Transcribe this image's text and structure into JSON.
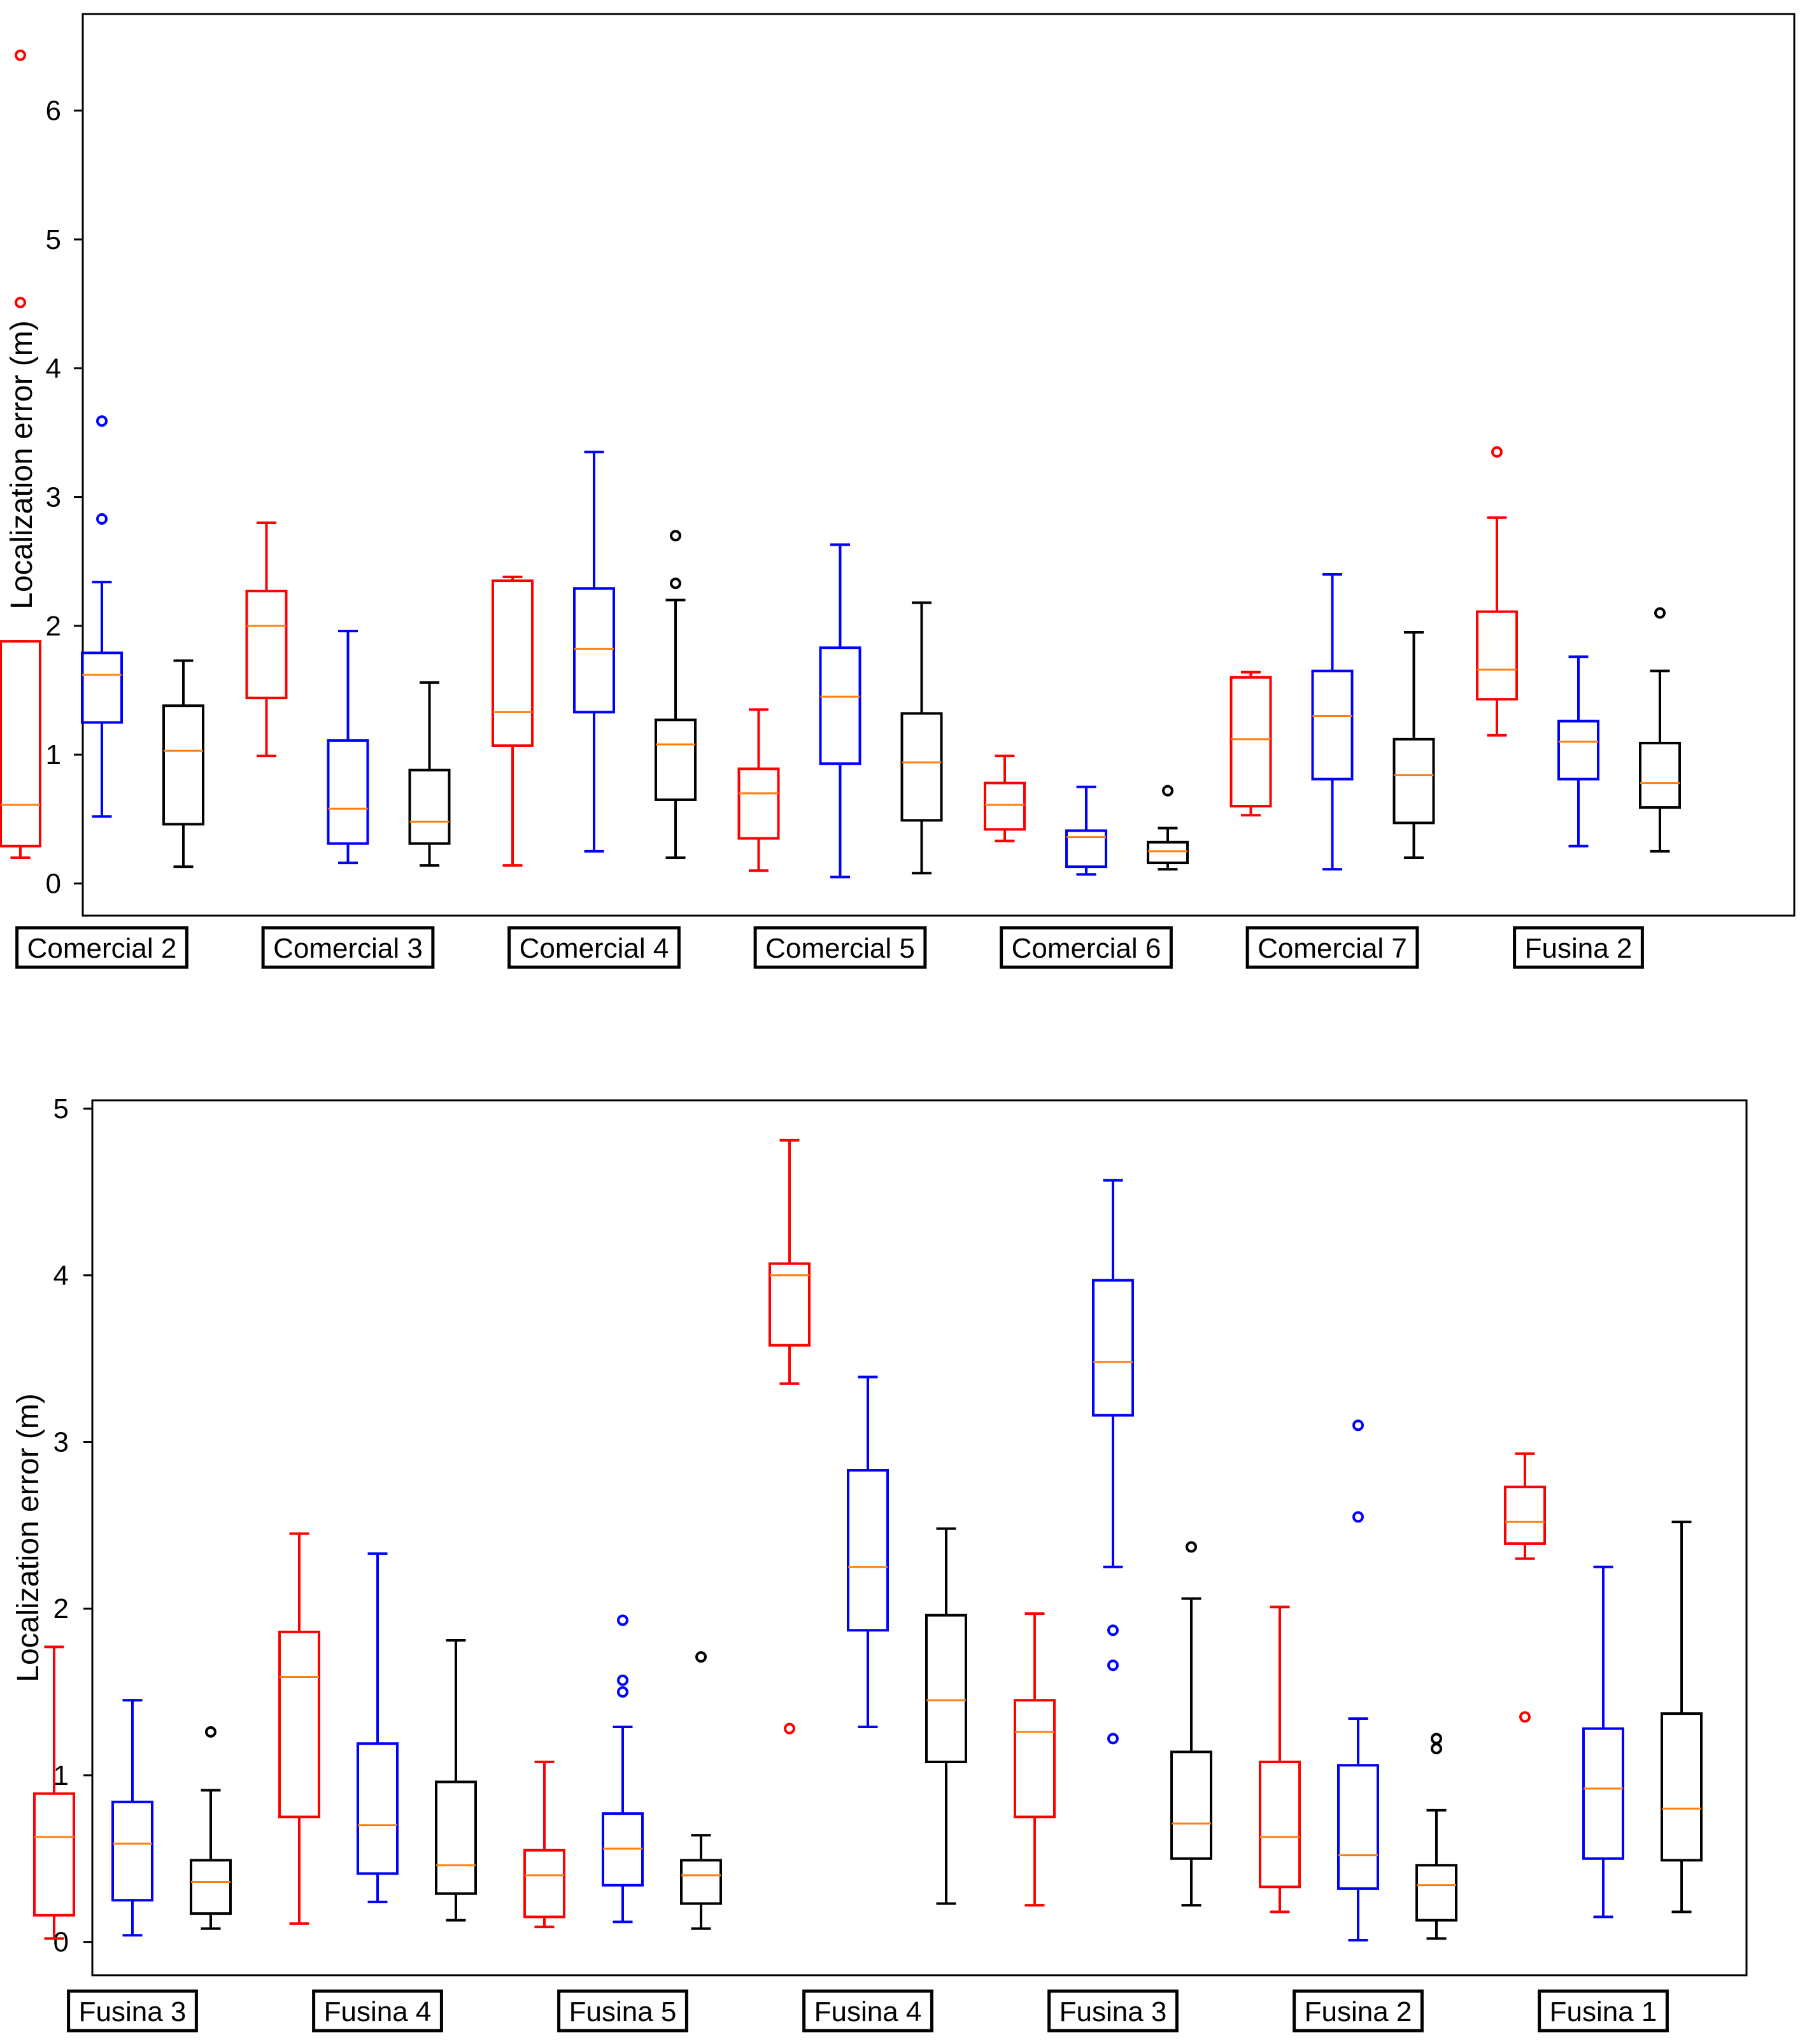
{
  "chart_data": [
    {
      "type": "boxplot",
      "ylabel": "Localization error (m)",
      "ylim": [
        -0.25,
        6.75
      ],
      "yticks": [
        0,
        1,
        2,
        3,
        4,
        5,
        6
      ],
      "series_colors": [
        "#ff0000",
        "#0000ff",
        "#000000"
      ],
      "median_color": "#ff7f0e",
      "groups": [
        {
          "label": "Comercial 2",
          "boxes": [
            {
              "whislo": 0.2,
              "q1": 0.29,
              "med": 0.61,
              "q3": 1.88,
              "whishi": 1.88,
              "fliers": [
                4.51,
                6.43
              ]
            },
            {
              "whislo": 0.52,
              "q1": 1.25,
              "med": 1.62,
              "q3": 1.79,
              "whishi": 2.34,
              "fliers": [
                2.83,
                3.59
              ]
            },
            {
              "whislo": 0.13,
              "q1": 0.46,
              "med": 1.03,
              "q3": 1.38,
              "whishi": 1.73,
              "fliers": []
            }
          ]
        },
        {
          "label": "Comercial 3",
          "boxes": [
            {
              "whislo": 0.99,
              "q1": 1.44,
              "med": 2.0,
              "q3": 2.27,
              "whishi": 2.8,
              "fliers": []
            },
            {
              "whislo": 0.16,
              "q1": 0.31,
              "med": 0.58,
              "q3": 1.11,
              "whishi": 1.96,
              "fliers": []
            },
            {
              "whislo": 0.14,
              "q1": 0.31,
              "med": 0.48,
              "q3": 0.88,
              "whishi": 1.56,
              "fliers": []
            }
          ]
        },
        {
          "label": "Comercial 4",
          "boxes": [
            {
              "whislo": 0.14,
              "q1": 1.07,
              "med": 1.33,
              "q3": 2.35,
              "whishi": 2.38,
              "fliers": []
            },
            {
              "whislo": 0.25,
              "q1": 1.33,
              "med": 1.82,
              "q3": 2.29,
              "whishi": 3.35,
              "fliers": []
            },
            {
              "whislo": 0.2,
              "q1": 0.65,
              "med": 1.08,
              "q3": 1.27,
              "whishi": 2.2,
              "fliers": [
                2.33,
                2.7
              ]
            }
          ]
        },
        {
          "label": "Comercial 5",
          "boxes": [
            {
              "whislo": 0.1,
              "q1": 0.35,
              "med": 0.7,
              "q3": 0.89,
              "whishi": 1.35,
              "fliers": []
            },
            {
              "whislo": 0.05,
              "q1": 0.93,
              "med": 1.45,
              "q3": 1.83,
              "whishi": 2.63,
              "fliers": []
            },
            {
              "whislo": 0.08,
              "q1": 0.49,
              "med": 0.94,
              "q3": 1.32,
              "whishi": 2.18,
              "fliers": []
            }
          ]
        },
        {
          "label": "Comercial 6",
          "boxes": [
            {
              "whislo": 0.33,
              "q1": 0.42,
              "med": 0.61,
              "q3": 0.78,
              "whishi": 0.99,
              "fliers": []
            },
            {
              "whislo": 0.07,
              "q1": 0.13,
              "med": 0.36,
              "q3": 0.41,
              "whishi": 0.75,
              "fliers": []
            },
            {
              "whislo": 0.11,
              "q1": 0.16,
              "med": 0.25,
              "q3": 0.32,
              "whishi": 0.43,
              "fliers": [
                0.72
              ]
            }
          ]
        },
        {
          "label": "Comercial 7",
          "boxes": [
            {
              "whislo": 0.53,
              "q1": 0.6,
              "med": 1.12,
              "q3": 1.6,
              "whishi": 1.64,
              "fliers": []
            },
            {
              "whislo": 0.11,
              "q1": 0.81,
              "med": 1.3,
              "q3": 1.65,
              "whishi": 2.4,
              "fliers": []
            },
            {
              "whislo": 0.2,
              "q1": 0.47,
              "med": 0.84,
              "q3": 1.12,
              "whishi": 1.95,
              "fliers": []
            }
          ]
        },
        {
          "label": "Fusina 2",
          "boxes": [
            {
              "whislo": 1.15,
              "q1": 1.43,
              "med": 1.66,
              "q3": 2.11,
              "whishi": 2.84,
              "fliers": [
                3.35
              ]
            },
            {
              "whislo": 0.29,
              "q1": 0.81,
              "med": 1.1,
              "q3": 1.26,
              "whishi": 1.76,
              "fliers": []
            },
            {
              "whislo": 0.25,
              "q1": 0.59,
              "med": 0.78,
              "q3": 1.09,
              "whishi": 1.65,
              "fliers": [
                2.1
              ]
            }
          ]
        }
      ]
    },
    {
      "type": "boxplot",
      "ylabel": "Localization error (m)",
      "ylim": [
        -0.2,
        5.05
      ],
      "yticks": [
        0,
        1,
        2,
        3,
        4,
        5
      ],
      "series_colors": [
        "#ff0000",
        "#0000ff",
        "#000000"
      ],
      "median_color": "#ff7f0e",
      "groups": [
        {
          "label": "Fusina 3",
          "boxes": [
            {
              "whislo": 0.02,
              "q1": 0.16,
              "med": 0.63,
              "q3": 0.89,
              "whishi": 1.77,
              "fliers": []
            },
            {
              "whislo": 0.04,
              "q1": 0.25,
              "med": 0.59,
              "q3": 0.84,
              "whishi": 1.45,
              "fliers": []
            },
            {
              "whislo": 0.08,
              "q1": 0.17,
              "med": 0.36,
              "q3": 0.49,
              "whishi": 0.91,
              "fliers": [
                1.26
              ]
            }
          ]
        },
        {
          "label": "Fusina 4",
          "boxes": [
            {
              "whislo": 0.11,
              "q1": 0.75,
              "med": 1.59,
              "q3": 1.86,
              "whishi": 2.45,
              "fliers": []
            },
            {
              "whislo": 0.24,
              "q1": 0.41,
              "med": 0.7,
              "q3": 1.19,
              "whishi": 2.33,
              "fliers": []
            },
            {
              "whislo": 0.13,
              "q1": 0.29,
              "med": 0.46,
              "q3": 0.96,
              "whishi": 1.81,
              "fliers": []
            }
          ]
        },
        {
          "label": "Fusina 5",
          "boxes": [
            {
              "whislo": 0.09,
              "q1": 0.15,
              "med": 0.4,
              "q3": 0.55,
              "whishi": 1.08,
              "fliers": []
            },
            {
              "whislo": 0.12,
              "q1": 0.34,
              "med": 0.56,
              "q3": 0.77,
              "whishi": 1.29,
              "fliers": [
                1.5,
                1.57,
                1.93
              ]
            },
            {
              "whislo": 0.08,
              "q1": 0.23,
              "med": 0.4,
              "q3": 0.49,
              "whishi": 0.64,
              "fliers": [
                1.71
              ]
            }
          ]
        },
        {
          "label": "Fusina 4",
          "boxes": [
            {
              "whislo": 3.35,
              "q1": 3.58,
              "med": 4.0,
              "q3": 4.07,
              "whishi": 4.81,
              "fliers": [
                1.28
              ]
            },
            {
              "whislo": 1.29,
              "q1": 1.87,
              "med": 2.25,
              "q3": 2.83,
              "whishi": 3.39,
              "fliers": []
            },
            {
              "whislo": 0.23,
              "q1": 1.08,
              "med": 1.45,
              "q3": 1.96,
              "whishi": 2.48,
              "fliers": []
            }
          ]
        },
        {
          "label": "Fusina 3",
          "boxes": [
            {
              "whislo": 0.22,
              "q1": 0.75,
              "med": 1.26,
              "q3": 1.45,
              "whishi": 1.97,
              "fliers": []
            },
            {
              "whislo": 2.25,
              "q1": 3.16,
              "med": 3.48,
              "q3": 3.97,
              "whishi": 4.57,
              "fliers": [
                1.22,
                1.66,
                1.87
              ]
            },
            {
              "whislo": 0.22,
              "q1": 0.5,
              "med": 0.71,
              "q3": 1.14,
              "whishi": 2.06,
              "fliers": [
                2.37
              ]
            }
          ]
        },
        {
          "label": "Fusina 2",
          "boxes": [
            {
              "whislo": 0.18,
              "q1": 0.33,
              "med": 0.63,
              "q3": 1.08,
              "whishi": 2.01,
              "fliers": []
            },
            {
              "whislo": 0.01,
              "q1": 0.32,
              "med": 0.52,
              "q3": 1.06,
              "whishi": 1.34,
              "fliers": [
                2.55,
                3.1
              ]
            },
            {
              "whislo": 0.02,
              "q1": 0.13,
              "med": 0.34,
              "q3": 0.46,
              "whishi": 0.79,
              "fliers": [
                1.16,
                1.22
              ]
            }
          ]
        },
        {
          "label": "Fusina 1",
          "boxes": [
            {
              "whislo": 2.3,
              "q1": 2.39,
              "med": 2.52,
              "q3": 2.73,
              "whishi": 2.93,
              "fliers": [
                1.35
              ]
            },
            {
              "whislo": 0.15,
              "q1": 0.5,
              "med": 0.92,
              "q3": 1.28,
              "whishi": 2.25,
              "fliers": []
            },
            {
              "whislo": 0.18,
              "q1": 0.49,
              "med": 0.8,
              "q3": 1.37,
              "whishi": 2.52,
              "fliers": []
            }
          ]
        }
      ]
    }
  ]
}
